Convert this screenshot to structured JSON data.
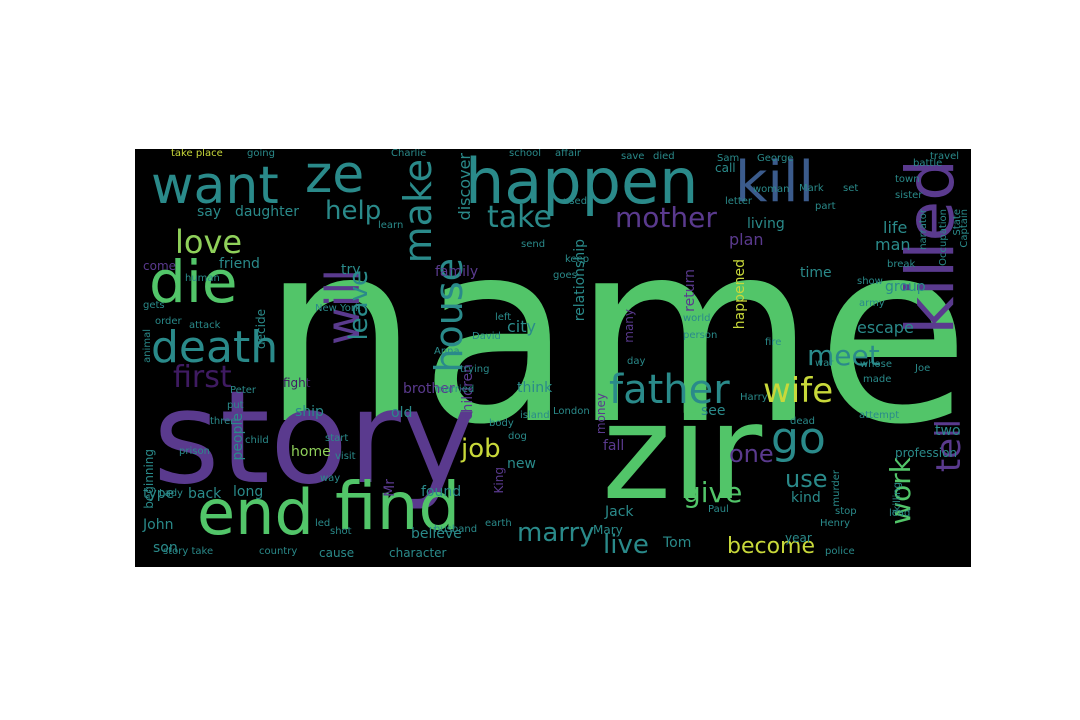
{
  "palette": {
    "green": "#52c569",
    "teal": "#2a8a8a",
    "blue": "#3b5b8c",
    "purple": "#5a3a8e",
    "dark_purple": "#3f1b62",
    "yellow": "#c8d83a",
    "light_green": "#8fd05a"
  },
  "words": [
    {
      "text": "name",
      "color": "green"
    },
    {
      "text": "story",
      "color": "purple"
    },
    {
      "text": "zir",
      "color": "green"
    },
    {
      "text": "find",
      "color": "green"
    },
    {
      "text": "end",
      "color": "green"
    },
    {
      "text": "happen",
      "color": "teal"
    },
    {
      "text": "ze",
      "color": "teal"
    },
    {
      "text": "want",
      "color": "teal"
    },
    {
      "text": "kill",
      "color": "blue"
    },
    {
      "text": "killed",
      "color": "purple"
    },
    {
      "text": "die",
      "color": "green"
    },
    {
      "text": "death",
      "color": "teal"
    },
    {
      "text": "love",
      "color": "light_green"
    },
    {
      "text": "father",
      "color": "teal"
    },
    {
      "text": "wife",
      "color": "yellow"
    },
    {
      "text": "tell",
      "color": "purple"
    },
    {
      "text": "go",
      "color": "teal"
    },
    {
      "text": "will",
      "color": "purple"
    },
    {
      "text": "make",
      "color": "teal"
    },
    {
      "text": "house",
      "color": "teal"
    },
    {
      "text": "leave",
      "color": "teal"
    },
    {
      "text": "first",
      "color": "dark_purple"
    },
    {
      "text": "mother",
      "color": "purple"
    },
    {
      "text": "take",
      "color": "teal"
    },
    {
      "text": "help",
      "color": "teal"
    },
    {
      "text": "meet",
      "color": "teal"
    },
    {
      "text": "work",
      "color": "green"
    },
    {
      "text": "job",
      "color": "yellow"
    },
    {
      "text": "give",
      "color": "green"
    },
    {
      "text": "marry",
      "color": "teal"
    },
    {
      "text": "live",
      "color": "teal"
    },
    {
      "text": "become",
      "color": "yellow"
    },
    {
      "text": "use",
      "color": "teal"
    },
    {
      "text": "one",
      "color": "purple"
    },
    {
      "text": "daughter",
      "color": "teal"
    },
    {
      "text": "say",
      "color": "teal"
    },
    {
      "text": "friend",
      "color": "teal"
    },
    {
      "text": "plan",
      "color": "purple"
    },
    {
      "text": "life",
      "color": "teal"
    },
    {
      "text": "man",
      "color": "teal"
    },
    {
      "text": "escape",
      "color": "teal"
    },
    {
      "text": "city",
      "color": "teal"
    },
    {
      "text": "family",
      "color": "purple"
    },
    {
      "text": "discover",
      "color": "teal"
    },
    {
      "text": "relationship",
      "color": "teal"
    },
    {
      "text": "return",
      "color": "purple"
    },
    {
      "text": "happened",
      "color": "yellow"
    },
    {
      "text": "group",
      "color": "teal"
    },
    {
      "text": "time",
      "color": "teal"
    },
    {
      "text": "living",
      "color": "teal"
    },
    {
      "text": "brother",
      "color": "purple"
    },
    {
      "text": "think",
      "color": "teal"
    },
    {
      "text": "children",
      "color": "purple"
    },
    {
      "text": "people",
      "color": "teal"
    },
    {
      "text": "ship",
      "color": "teal"
    },
    {
      "text": "old",
      "color": "teal"
    },
    {
      "text": "home",
      "color": "light_green"
    },
    {
      "text": "back",
      "color": "teal"
    },
    {
      "text": "type",
      "color": "teal"
    },
    {
      "text": "long",
      "color": "teal"
    },
    {
      "text": "found",
      "color": "teal"
    },
    {
      "text": "John",
      "color": "teal"
    },
    {
      "text": "son",
      "color": "teal"
    },
    {
      "text": "Mr",
      "color": "purple"
    },
    {
      "text": "Jack",
      "color": "teal"
    },
    {
      "text": "Mary",
      "color": "teal"
    },
    {
      "text": "King",
      "color": "purple"
    },
    {
      "text": "fall",
      "color": "purple"
    },
    {
      "text": "new",
      "color": "teal"
    },
    {
      "text": "money",
      "color": "purple"
    },
    {
      "text": "see",
      "color": "teal"
    },
    {
      "text": "two",
      "color": "teal"
    },
    {
      "text": "kind",
      "color": "teal"
    },
    {
      "text": "year",
      "color": "teal"
    },
    {
      "text": "Tom",
      "color": "teal"
    },
    {
      "text": "believe",
      "color": "teal"
    },
    {
      "text": "character",
      "color": "teal"
    },
    {
      "text": "cause",
      "color": "teal"
    },
    {
      "text": "beginning",
      "color": "teal"
    },
    {
      "text": "try",
      "color": "teal"
    },
    {
      "text": "decide",
      "color": "teal"
    },
    {
      "text": "come",
      "color": "purple"
    },
    {
      "text": "many",
      "color": "purple"
    },
    {
      "text": "profession",
      "color": "teal"
    },
    {
      "text": "call",
      "color": "teal"
    },
    {
      "text": "part",
      "color": "teal"
    },
    {
      "text": "George",
      "color": "teal"
    },
    {
      "text": "travel",
      "color": "teal"
    },
    {
      "text": "prison",
      "color": "teal"
    },
    {
      "text": "visit",
      "color": "teal"
    },
    {
      "text": "country",
      "color": "teal"
    },
    {
      "text": "story take",
      "color": "teal"
    },
    {
      "text": "take place",
      "color": "yellow"
    },
    {
      "text": "going",
      "color": "teal"
    },
    {
      "text": "Charlie",
      "color": "teal"
    },
    {
      "text": "school",
      "color": "teal"
    },
    {
      "text": "affair",
      "color": "teal"
    },
    {
      "text": "police",
      "color": "teal"
    },
    {
      "text": "attack",
      "color": "teal"
    },
    {
      "text": "fight",
      "color": "dark_purple"
    },
    {
      "text": "married",
      "color": "teal"
    },
    {
      "text": "body",
      "color": "teal"
    },
    {
      "text": "dog",
      "color": "teal"
    },
    {
      "text": "London",
      "color": "teal"
    },
    {
      "text": "island",
      "color": "teal"
    },
    {
      "text": "Harry",
      "color": "teal"
    },
    {
      "text": "dead",
      "color": "teal"
    },
    {
      "text": "stop",
      "color": "teal"
    },
    {
      "text": "Henry",
      "color": "teal"
    },
    {
      "text": "Paul",
      "color": "teal"
    },
    {
      "text": "earth",
      "color": "teal"
    },
    {
      "text": "murder",
      "color": "teal"
    },
    {
      "text": "shot",
      "color": "teal"
    },
    {
      "text": "three",
      "color": "teal"
    },
    {
      "text": "Peter",
      "color": "teal"
    },
    {
      "text": "put",
      "color": "teal"
    },
    {
      "text": "start",
      "color": "teal"
    },
    {
      "text": "child",
      "color": "teal"
    },
    {
      "text": "day",
      "color": "teal"
    },
    {
      "text": "Anna",
      "color": "teal"
    },
    {
      "text": "New York",
      "color": "teal"
    },
    {
      "text": "David",
      "color": "teal"
    },
    {
      "text": "left",
      "color": "teal"
    },
    {
      "text": "letter",
      "color": "teal"
    },
    {
      "text": "human",
      "color": "teal"
    },
    {
      "text": "send",
      "color": "teal"
    },
    {
      "text": "gets",
      "color": "teal"
    },
    {
      "text": "learn",
      "color": "teal"
    },
    {
      "text": "keep",
      "color": "teal"
    },
    {
      "text": "goes",
      "color": "teal"
    },
    {
      "text": "used",
      "color": "teal"
    },
    {
      "text": "fire",
      "color": "teal"
    },
    {
      "text": "whose",
      "color": "teal"
    },
    {
      "text": "made",
      "color": "teal"
    },
    {
      "text": "Joe",
      "color": "teal"
    },
    {
      "text": "narrator",
      "color": "teal"
    },
    {
      "text": "Occupation",
      "color": "teal"
    },
    {
      "text": "State",
      "color": "teal"
    },
    {
      "text": "Captain",
      "color": "teal"
    },
    {
      "text": "break",
      "color": "teal"
    },
    {
      "text": "trying",
      "color": "teal"
    },
    {
      "text": "attempt",
      "color": "teal"
    },
    {
      "text": "killing",
      "color": "teal"
    },
    {
      "text": "lead",
      "color": "teal"
    },
    {
      "text": "battle",
      "color": "teal"
    },
    {
      "text": "town",
      "color": "teal"
    },
    {
      "text": "sister",
      "color": "teal"
    },
    {
      "text": "woman",
      "color": "teal"
    },
    {
      "text": "Sam",
      "color": "teal"
    },
    {
      "text": "save",
      "color": "teal"
    },
    {
      "text": "died",
      "color": "teal"
    },
    {
      "text": "show",
      "color": "teal"
    },
    {
      "text": "army",
      "color": "teal"
    },
    {
      "text": "war",
      "color": "teal"
    },
    {
      "text": "order",
      "color": "teal"
    },
    {
      "text": "Mark",
      "color": "teal"
    },
    {
      "text": "set",
      "color": "teal"
    },
    {
      "text": "world",
      "color": "teal"
    },
    {
      "text": "person",
      "color": "teal"
    },
    {
      "text": "animal",
      "color": "teal"
    },
    {
      "text": "Lady",
      "color": "teal"
    },
    {
      "text": "led",
      "color": "teal"
    },
    {
      "text": "way",
      "color": "teal"
    },
    {
      "text": "husband",
      "color": "teal"
    }
  ]
}
